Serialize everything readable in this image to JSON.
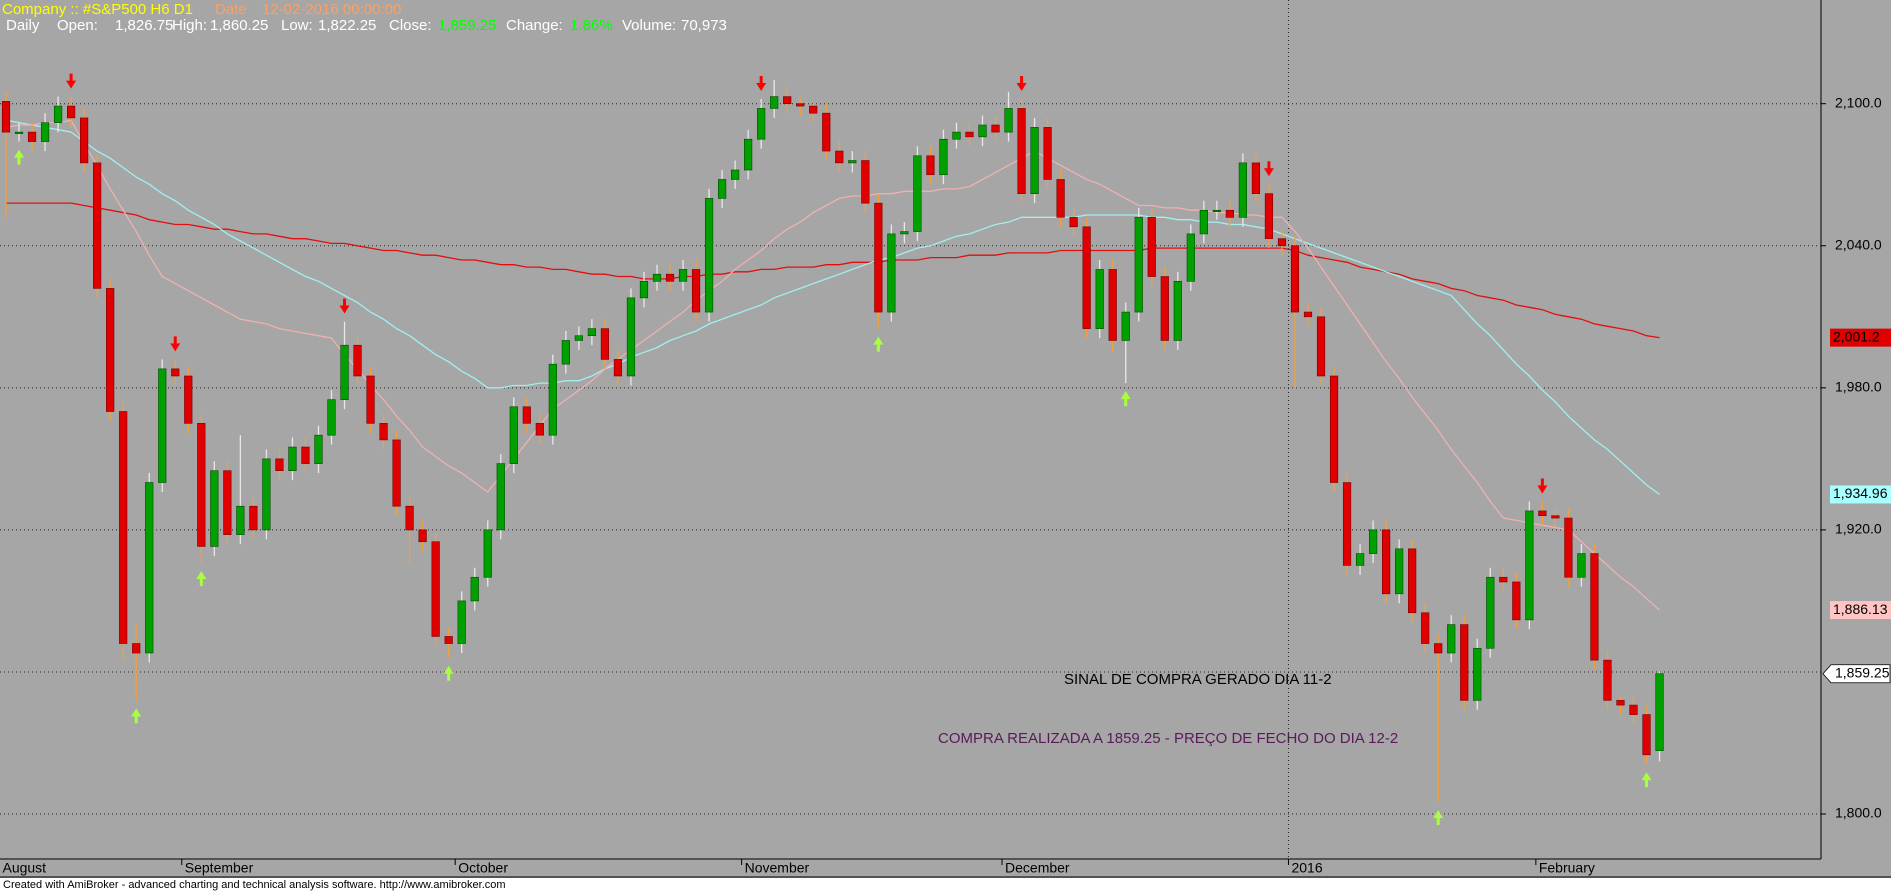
{
  "chart_data": {
    "type": "candlestick",
    "header": {
      "symbol": "Company :: #S&P500  H6  D1",
      "date_label": "Date",
      "date": "12-02-2016 00:00:00",
      "period": "Daily",
      "open_label": "Open:",
      "open": "1,826.75",
      "high_label": "High:",
      "high": "1,860.25",
      "low_label": "Low:",
      "low": "1,822.25",
      "close_label": "Close:",
      "close": "1,859.25",
      "change_label": "Change:",
      "change": "1.86%",
      "volume_label": "Volume:",
      "volume": "70,973"
    },
    "annotations": [
      {
        "text": "SINAL DE COMPRA GERADO DIA 11-2",
        "color": "#000000"
      },
      {
        "text": "COMPRA REALIZADA A 1859.25 - PREÇO DE FECHO DO DIA 12-2",
        "color": "#5a1a5a"
      }
    ],
    "footer": "Created with AmiBroker - advanced charting and technical analysis software. http://www.amibroker.com",
    "categories": [
      "August",
      null,
      null,
      null,
      null,
      null,
      null,
      null,
      null,
      null,
      null,
      null,
      null,
      null,
      "September",
      null,
      null,
      null,
      null,
      null,
      null,
      null,
      null,
      null,
      null,
      null,
      null,
      null,
      null,
      null,
      null,
      null,
      null,
      null,
      null,
      "October",
      null,
      null,
      null,
      null,
      null,
      null,
      null,
      null,
      null,
      null,
      null,
      null,
      null,
      null,
      null,
      null,
      null,
      null,
      null,
      null,
      null,
      "November",
      null,
      null,
      null,
      null,
      null,
      null,
      null,
      null,
      null,
      null,
      null,
      null,
      null,
      null,
      null,
      null,
      null,
      null,
      null,
      "December",
      null,
      null,
      null,
      null,
      null,
      null,
      null,
      null,
      null,
      null,
      null,
      null,
      null,
      null,
      null,
      null,
      null,
      null,
      null,
      null,
      null,
      "2016",
      null,
      null,
      null,
      null,
      null,
      null,
      null,
      null,
      null,
      null,
      null,
      null,
      null,
      null,
      null,
      null,
      null,
      null,
      "February",
      null,
      null,
      null,
      null,
      null,
      null,
      null,
      null,
      null
    ],
    "open": [
      2101,
      2088,
      2088,
      2084,
      2092,
      2099,
      2094,
      2075,
      2022,
      1970,
      1872,
      1868,
      1940,
      1988,
      1985,
      1965,
      1913,
      1945,
      1918,
      1930,
      1920,
      1950,
      1945,
      1955,
      1948,
      1960,
      1975,
      1998,
      1985,
      1965,
      1958,
      1930,
      1920,
      1915,
      1875,
      1872,
      1890,
      1900,
      1920,
      1948,
      1972,
      1965,
      1960,
      1990,
      2000,
      2002,
      2005,
      1992,
      1985,
      2018,
      2025,
      2028,
      2025,
      2030,
      2012,
      2060,
      2068,
      2072,
      2085,
      2098,
      2103,
      2100,
      2099,
      2096,
      2080,
      2075,
      2076,
      2058,
      2012,
      2045,
      2046,
      2078,
      2070,
      2085,
      2088,
      2086,
      2091,
      2088,
      2098,
      2062,
      2090,
      2068,
      2052,
      2048,
      2005,
      2030,
      2000,
      2012,
      2052,
      2027,
      2000,
      2025,
      2045,
      2055,
      2055,
      2052,
      2075,
      2062,
      2043,
      2040,
      2012,
      2010,
      1985,
      1940,
      1905,
      1910,
      1920,
      1893,
      1912,
      1885,
      1872,
      1868,
      1880,
      1848,
      1870,
      1900,
      1898,
      1882,
      1928,
      1926,
      1925,
      1900,
      1910,
      1865,
      1848,
      1846,
      1842,
      1826.75
    ],
    "high": [
      2105,
      2092,
      2092,
      2096,
      2103,
      2103,
      2098,
      2079,
      2026,
      1974,
      1880,
      1944,
      1992,
      1992,
      1989,
      1969,
      1949,
      1949,
      1960,
      1934,
      1954,
      1954,
      1959,
      1959,
      1964,
      1979,
      2008,
      2002,
      1989,
      1969,
      1962,
      1934,
      1924,
      1919,
      1879,
      1894,
      1904,
      1924,
      1952,
      1976,
      1976,
      1969,
      1994,
      2004,
      2006,
      2009,
      2009,
      1996,
      2022,
      2029,
      2032,
      2032,
      2034,
      2034,
      2064,
      2072,
      2076,
      2089,
      2102,
      2110,
      2107,
      2103,
      2100,
      2100,
      2084,
      2080,
      2080,
      2062,
      2049,
      2050,
      2082,
      2082,
      2089,
      2092,
      2092,
      2095,
      2095,
      2105,
      2102,
      2094,
      2094,
      2072,
      2056,
      2052,
      2034,
      2034,
      2016,
      2056,
      2056,
      2031,
      2029,
      2049,
      2059,
      2059,
      2059,
      2079,
      2079,
      2066,
      2047,
      2044,
      2016,
      2014,
      1989,
      1944,
      1914,
      1924,
      1924,
      1916,
      1916,
      1889,
      1876,
      1884,
      1884,
      1874,
      1904,
      1904,
      1902,
      1932,
      1932,
      1929,
      1929,
      1914,
      1914,
      1869,
      1850,
      1850,
      1846,
      1860.25
    ],
    "low": [
      2052,
      2084,
      2080,
      2080,
      2088,
      2090,
      2071,
      2018,
      1966,
      1865,
      1848,
      1864,
      1936,
      1981,
      1961,
      1906,
      1909,
      1914,
      1914,
      1916,
      1916,
      1941,
      1941,
      1944,
      1944,
      1956,
      1971,
      1981,
      1961,
      1954,
      1926,
      1905,
      1911,
      1871,
      1866,
      1868,
      1886,
      1896,
      1916,
      1944,
      1961,
      1956,
      1956,
      1986,
      1996,
      1998,
      1988,
      1981,
      1981,
      2014,
      2021,
      2021,
      2021,
      2008,
      2008,
      2056,
      2064,
      2068,
      2081,
      2094,
      2096,
      2095,
      2092,
      2076,
      2071,
      2071,
      2054,
      2005,
      2008,
      2041,
      2042,
      2066,
      2066,
      2081,
      2082,
      2082,
      2084,
      2084,
      2058,
      2058,
      2064,
      2048,
      2044,
      2001,
      2001,
      1995,
      1982,
      2008,
      2023,
      1996,
      1996,
      2021,
      2041,
      2051,
      2048,
      2048,
      2058,
      2039,
      2036,
      1980,
      2006,
      1981,
      1936,
      1901,
      1901,
      1906,
      1889,
      1889,
      1881,
      1868,
      1805,
      1864,
      1844,
      1844,
      1866,
      1894,
      1878,
      1878,
      1922,
      1921,
      1896,
      1896,
      1861,
      1844,
      1842,
      1838,
      1821,
      1822.25
    ],
    "close": [
      2088,
      2088,
      2084,
      2092,
      2099,
      2094,
      2075,
      2022,
      1970,
      1872,
      1868,
      1940,
      1988,
      1985,
      1965,
      1913,
      1945,
      1918,
      1930,
      1920,
      1950,
      1945,
      1955,
      1948,
      1960,
      1975,
      1998,
      1985,
      1965,
      1958,
      1930,
      1920,
      1915,
      1875,
      1872,
      1890,
      1900,
      1920,
      1948,
      1972,
      1965,
      1960,
      1990,
      2000,
      2002,
      2005,
      1992,
      1985,
      2018,
      2025,
      2028,
      2025,
      2030,
      2012,
      2060,
      2068,
      2072,
      2085,
      2098,
      2103,
      2100,
      2099,
      2096,
      2080,
      2075,
      2076,
      2058,
      2012,
      2045,
      2046,
      2078,
      2070,
      2085,
      2088,
      2086,
      2091,
      2088,
      2098,
      2062,
      2090,
      2068,
      2052,
      2048,
      2005,
      2030,
      2000,
      2012,
      2052,
      2027,
      2000,
      2025,
      2045,
      2055,
      2055,
      2052,
      2075,
      2062,
      2043,
      2040,
      2012,
      2010,
      1985,
      1940,
      1905,
      1910,
      1920,
      1893,
      1912,
      1885,
      1872,
      1868,
      1880,
      1848,
      1870,
      1900,
      1898,
      1882,
      1928,
      1926,
      1925,
      1900,
      1910,
      1865,
      1848,
      1846,
      1842,
      1825,
      1859.25
    ],
    "close_label": "1,859.25",
    "up_color": "#00a000",
    "down_color": "#e00000",
    "up_wick": "#e8e8e8",
    "down_wick": "#f0a040",
    "lines": [
      {
        "color": "#e01010",
        "label_bg": "#e00000",
        "value_label": "2,001.2",
        "values": [
          2058,
          2058,
          2058,
          2058,
          2058,
          2058,
          2057,
          2056,
          2055,
          2054,
          2053,
          2051,
          2050,
          2049,
          2049,
          2048,
          2047,
          2047,
          2046,
          2045,
          2045,
          2044,
          2043,
          2043,
          2042,
          2041,
          2041,
          2040,
          2039,
          2038,
          2038,
          2037,
          2036,
          2036,
          2035,
          2034,
          2034,
          2033,
          2032,
          2032,
          2031,
          2031,
          2030,
          2030,
          2029,
          2028,
          2028,
          2027,
          2027,
          2026,
          2026,
          2026,
          2027,
          2027,
          2028,
          2028,
          2029,
          2029,
          2030,
          2030,
          2031,
          2031,
          2031,
          2032,
          2032,
          2033,
          2033,
          2033,
          2034,
          2034,
          2034,
          2035,
          2035,
          2035,
          2036,
          2036,
          2036,
          2037,
          2037,
          2037,
          2037,
          2038,
          2038,
          2038,
          2038,
          2038,
          2038,
          2038,
          2039,
          2039,
          2039,
          2039,
          2039,
          2039,
          2039,
          2039,
          2039,
          2039,
          2039,
          2038,
          2036,
          2035,
          2034,
          2033,
          2031,
          2030,
          2029,
          2028,
          2026,
          2025,
          2024,
          2022,
          2021,
          2019,
          2018,
          2017,
          2015,
          2014,
          2013,
          2011,
          2010,
          2009,
          2007,
          2006,
          2005,
          2004,
          2002,
          2001.2
        ]
      },
      {
        "color": "#a0f0f0",
        "label_bg": "#a8ffff",
        "value_label": "1,934.96",
        "values": [
          2093,
          2092,
          2091,
          2090,
          2089,
          2088,
          2084,
          2080,
          2077,
          2073,
          2069,
          2066,
          2062,
          2059,
          2055,
          2052,
          2049,
          2045,
          2042,
          2039,
          2036,
          2033,
          2030,
          2027,
          2025,
          2022,
          2019,
          2016,
          2012,
          2009,
          2005,
          2002,
          1998,
          1994,
          1991,
          1987,
          1984,
          1980,
          1980,
          1981,
          1981,
          1982,
          1982,
          1983,
          1983,
          1985,
          1988,
          1990,
          1993,
          1995,
          1997,
          2000,
          2002,
          2004,
          2007,
          2009,
          2011,
          2013,
          2015,
          2018,
          2020,
          2022,
          2024,
          2026,
          2028,
          2030,
          2032,
          2034,
          2035,
          2037,
          2039,
          2040,
          2042,
          2044,
          2045,
          2047,
          2049,
          2050,
          2052,
          2052,
          2052,
          2052,
          2052,
          2053,
          2053,
          2053,
          2053,
          2053,
          2052,
          2052,
          2051,
          2051,
          2050,
          2050,
          2049,
          2049,
          2048,
          2047,
          2045,
          2043,
          2041,
          2039,
          2037,
          2035,
          2033,
          2031,
          2029,
          2027,
          2025,
          2023,
          2021,
          2019,
          2013,
          2007,
          2002,
          1996,
          1990,
          1985,
          1979,
          1974,
          1968,
          1963,
          1958,
          1954,
          1949,
          1944,
          1939,
          1934.96
        ]
      },
      {
        "color": "#f0b0b0",
        "label_bg": "#ffc4c4",
        "value_label": "1,886.13",
        "values": [
          2090,
          2091,
          2091,
          2092,
          2092,
          2093,
          2083,
          2074,
          2064,
          2055,
          2046,
          2036,
          2027,
          2024,
          2021,
          2018,
          2015,
          2012,
          2009,
          2008,
          2007,
          2005,
          2004,
          2003,
          2002,
          2001,
          1994,
          1988,
          1981,
          1975,
          1968,
          1962,
          1955,
          1951,
          1947,
          1944,
          1940,
          1936,
          1943,
          1950,
          1957,
          1964,
          1971,
          1975,
          1979,
          1983,
          1988,
          1992,
          1996,
          2000,
          2004,
          2008,
          2012,
          2017,
          2021,
          2025,
          2030,
          2034,
          2038,
          2043,
          2047,
          2050,
          2054,
          2057,
          2060,
          2061,
          2061,
          2062,
          2062,
          2063,
          2063,
          2063,
          2064,
          2064,
          2065,
          2068,
          2071,
          2074,
          2077,
          2080,
          2077,
          2074,
          2071,
          2068,
          2066,
          2063,
          2060,
          2057,
          2057,
          2056,
          2056,
          2055,
          2055,
          2054,
          2054,
          2053,
          2053,
          2052,
          2052,
          2046,
          2039,
          2031,
          2023,
          2015,
          2007,
          1999,
          1991,
          1984,
          1976,
          1969,
          1962,
          1954,
          1947,
          1940,
          1932,
          1925,
          1924,
          1923,
          1922,
          1921,
          1920,
          1915,
          1910,
          1905,
          1900,
          1896,
          1891,
          1886.13
        ]
      }
    ],
    "signals": {
      "sell": [
        5,
        13,
        26,
        58,
        78,
        97,
        118
      ],
      "buy": [
        1,
        10,
        15,
        34,
        67,
        86,
        110,
        126
      ],
      "sell_color": "#ff0000",
      "buy_color": "#a8ff40"
    },
    "ylim": [
      1781,
      2128
    ],
    "yticks": [
      {
        "value": 1800,
        "label": "1,800.0"
      },
      {
        "value": 1920,
        "label": "1,920.0"
      },
      {
        "value": 1980,
        "label": "1,980.0"
      },
      {
        "value": 2040,
        "label": "2,040.0"
      },
      {
        "value": 2100,
        "label": "2,100.0"
      }
    ],
    "grid_levels": [
      1860
    ],
    "grid": true
  }
}
